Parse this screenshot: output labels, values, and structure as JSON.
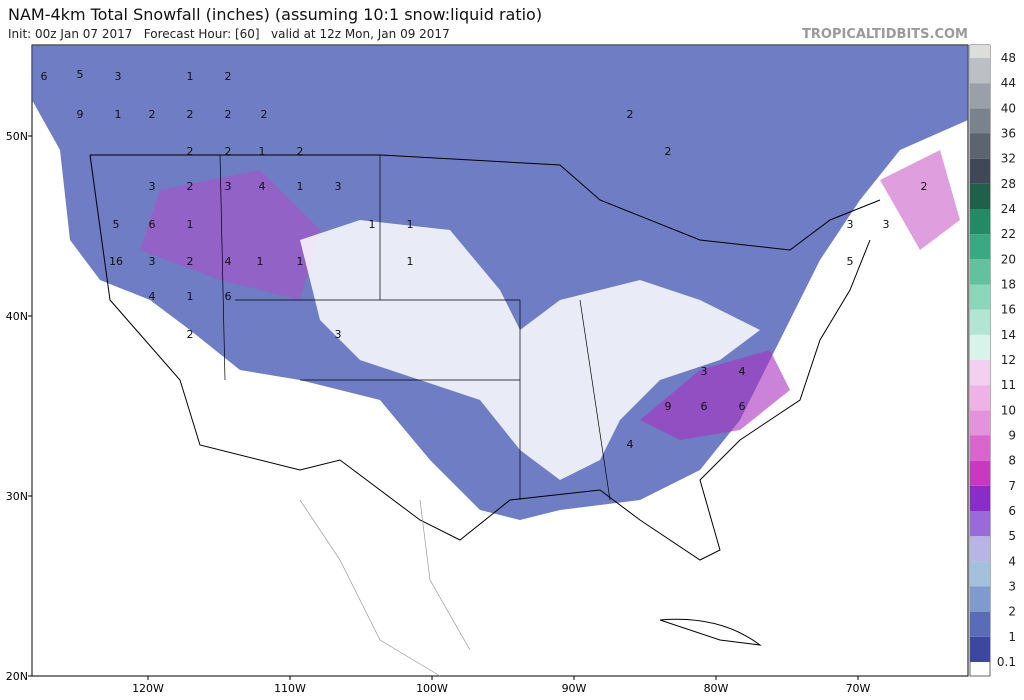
{
  "header": {
    "title": "NAM-4km Total Snowfall (inches) (assuming 10:1 snow:liquid ratio)",
    "subtitle": "Init: 00z Jan 07 2017   Forecast Hour: [60]   valid at 12z Mon, Jan 09 2017",
    "watermark": "TROPICALTIDBITS.COM"
  },
  "map": {
    "lat_labels": [
      "50N",
      "40N",
      "30N",
      "20N"
    ],
    "lon_labels": [
      "120W",
      "110W",
      "100W",
      "90W",
      "80W",
      "70W"
    ],
    "labels": [
      "6",
      "5",
      "3",
      "1",
      "2",
      "9",
      "1",
      "2",
      "2",
      "2",
      "2",
      "2",
      "2",
      "1",
      "2",
      "3",
      "2",
      "3",
      "4",
      "1",
      "3",
      "5",
      "6",
      "1",
      "1",
      "1",
      "16",
      "3",
      "2",
      "4",
      "1",
      "1",
      "4",
      "1",
      "6",
      "2",
      "3",
      "2",
      "2",
      "1",
      "3",
      "4",
      "9",
      "6",
      "6",
      "4",
      "2",
      "3",
      "5",
      "3"
    ]
  },
  "colorbar": {
    "levels": [
      "0.1",
      "1",
      "2",
      "3",
      "4",
      "5",
      "6",
      "7",
      "8",
      "9",
      "10",
      "11",
      "12",
      "14",
      "16",
      "18",
      "20",
      "22",
      "24",
      "28",
      "32",
      "36",
      "40",
      "44",
      "48"
    ],
    "colors": [
      "#3c48a0",
      "#5a6cb8",
      "#7f9acc",
      "#a3c0dc",
      "#b8b4e4",
      "#9a6ad8",
      "#8a2cc8",
      "#c838c0",
      "#d866cc",
      "#e492dc",
      "#eeb2e6",
      "#f4d0f0",
      "#d8f4ea",
      "#b2e6d4",
      "#8cd6bc",
      "#62c2a0",
      "#3aa882",
      "#228a64",
      "#20604a",
      "#404858",
      "#5c6470",
      "#7a828c",
      "#9aa0a8",
      "#bcc0c4",
      "#dcdedc"
    ]
  }
}
